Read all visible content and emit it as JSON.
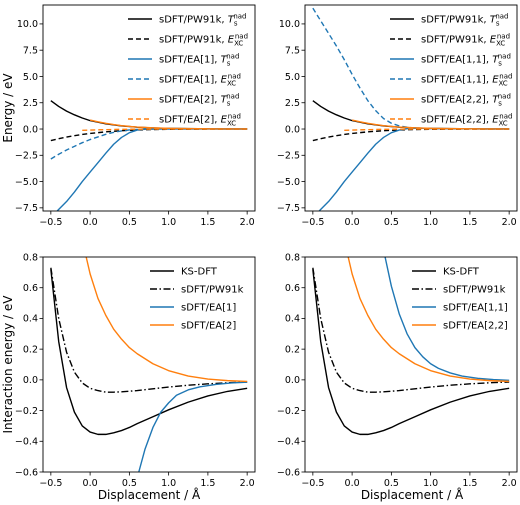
{
  "figure": {
    "xlabel": "Displacement / Å",
    "colors": {
      "black": "#000000",
      "blue": "#1f77b4",
      "orange": "#ff7f0e"
    }
  },
  "chart_data": [
    {
      "type": "line",
      "ylabel": "Energy / eV",
      "xlim": [
        -0.6,
        2.1
      ],
      "ylim": [
        -7.8,
        11.8
      ],
      "xticks": [
        "-0.5",
        "0.0",
        "0.5",
        "1.0",
        "1.5",
        "2.0"
      ],
      "yticks": [
        "-7.5",
        "-5.0",
        "-2.5",
        "0.0",
        "2.5",
        "5.0",
        "7.5",
        "10.0"
      ],
      "legend_position": "top-right",
      "series": [
        {
          "name": "sDFT/PW91k, T_s^nad",
          "label_main": "sDFT/PW91k, ",
          "label_sym": "T",
          "label_sub": "s",
          "label_sup": "nad",
          "color": "#000000",
          "dash": "solid",
          "x": [
            -0.5,
            -0.4,
            -0.3,
            -0.2,
            -0.1,
            0.0,
            0.2,
            0.4,
            0.6,
            0.8,
            1.0,
            1.25,
            1.5,
            1.75,
            2.0
          ],
          "y": [
            2.7,
            2.15,
            1.7,
            1.35,
            1.05,
            0.8,
            0.5,
            0.3,
            0.17,
            0.1,
            0.06,
            0.03,
            0.015,
            0.008,
            0.004
          ]
        },
        {
          "name": "sDFT/PW91k, E_XC^nad",
          "label_main": "sDFT/PW91k, ",
          "label_sym": "E",
          "label_sub": "XC",
          "label_sup": "nad",
          "color": "#000000",
          "dash": "dashed",
          "x": [
            -0.5,
            -0.4,
            -0.3,
            -0.2,
            -0.1,
            0.0,
            0.2,
            0.4,
            0.6,
            0.8,
            1.0,
            1.25,
            1.5,
            1.75,
            2.0
          ],
          "y": [
            -1.1,
            -0.92,
            -0.77,
            -0.63,
            -0.52,
            -0.42,
            -0.27,
            -0.16,
            -0.09,
            -0.05,
            -0.03,
            -0.015,
            -0.008,
            -0.004,
            -0.002
          ]
        },
        {
          "name": "sDFT/EA[1], T_s^nad",
          "label_main": "sDFT/EA[1], ",
          "label_sym": "T",
          "label_sub": "s",
          "label_sup": "nad",
          "color": "#1f77b4",
          "dash": "solid",
          "x": [
            -0.42,
            -0.3,
            -0.2,
            -0.1,
            0.0,
            0.1,
            0.2,
            0.3,
            0.4,
            0.5,
            0.6,
            0.7,
            0.8,
            1.0,
            1.25,
            1.5,
            1.75,
            2.0
          ],
          "y": [
            -7.8,
            -6.9,
            -6.0,
            -5.0,
            -4.1,
            -3.2,
            -2.3,
            -1.45,
            -0.8,
            -0.35,
            -0.1,
            0.03,
            0.08,
            0.07,
            0.04,
            0.02,
            0.01,
            0.005
          ]
        },
        {
          "name": "sDFT/EA[1], E_XC^nad",
          "label_main": "sDFT/EA[1], ",
          "label_sym": "E",
          "label_sub": "XC",
          "label_sup": "nad",
          "color": "#1f77b4",
          "dash": "dashed",
          "x": [
            -0.5,
            -0.4,
            -0.3,
            -0.2,
            -0.1,
            0.0,
            0.1,
            0.2,
            0.3,
            0.4,
            0.5,
            0.6,
            0.8,
            1.0,
            1.25,
            1.5,
            1.75,
            2.0
          ],
          "y": [
            -2.85,
            -2.4,
            -2.0,
            -1.65,
            -1.3,
            -1.0,
            -0.75,
            -0.5,
            -0.32,
            -0.18,
            -0.09,
            -0.04,
            -0.01,
            0.0,
            0.0,
            0.0,
            0.0,
            0.0
          ]
        },
        {
          "name": "sDFT/EA[2], T_s^nad",
          "label_main": "sDFT/EA[2], ",
          "label_sym": "T",
          "label_sub": "s",
          "label_sup": "nad",
          "color": "#ff7f0e",
          "dash": "solid",
          "x": [
            0.0,
            0.1,
            0.2,
            0.3,
            0.4,
            0.5,
            0.6,
            0.8,
            1.0,
            1.25,
            1.5,
            1.75,
            2.0
          ],
          "y": [
            0.85,
            0.68,
            0.54,
            0.42,
            0.32,
            0.25,
            0.19,
            0.11,
            0.07,
            0.04,
            0.02,
            0.01,
            0.005
          ]
        },
        {
          "name": "sDFT/EA[2], E_XC^nad",
          "label_main": "sDFT/EA[2], ",
          "label_sym": "E",
          "label_sub": "XC",
          "label_sup": "nad",
          "color": "#ff7f0e",
          "dash": "dashed",
          "x": [
            -0.1,
            0.0,
            0.2,
            0.4,
            0.6,
            0.8,
            1.0,
            1.25,
            1.5,
            1.75,
            2.0
          ],
          "y": [
            -0.12,
            -0.1,
            -0.06,
            -0.03,
            -0.015,
            -0.008,
            -0.004,
            -0.002,
            -0.001,
            0.0,
            0.0
          ]
        }
      ]
    },
    {
      "type": "line",
      "ylabel": "",
      "xlim": [
        -0.6,
        2.1
      ],
      "ylim": [
        -7.8,
        11.8
      ],
      "xticks": [
        "-0.5",
        "0.0",
        "0.5",
        "1.0",
        "1.5",
        "2.0"
      ],
      "yticks": [
        "-7.5",
        "-5.0",
        "-2.5",
        "0.0",
        "2.5",
        "5.0",
        "7.5",
        "10.0"
      ],
      "legend_position": "top-right",
      "series": [
        {
          "name": "sDFT/PW91k, T_s^nad",
          "label_main": "sDFT/PW91k, ",
          "label_sym": "T",
          "label_sub": "s",
          "label_sup": "nad",
          "color": "#000000",
          "dash": "solid",
          "x": [
            -0.5,
            -0.4,
            -0.3,
            -0.2,
            -0.1,
            0.0,
            0.2,
            0.4,
            0.6,
            0.8,
            1.0,
            1.25,
            1.5,
            1.75,
            2.0
          ],
          "y": [
            2.7,
            2.15,
            1.7,
            1.35,
            1.05,
            0.8,
            0.5,
            0.3,
            0.17,
            0.1,
            0.06,
            0.03,
            0.015,
            0.008,
            0.004
          ]
        },
        {
          "name": "sDFT/PW91k, E_XC^nad",
          "label_main": "sDFT/PW91k, ",
          "label_sym": "E",
          "label_sub": "XC",
          "label_sup": "nad",
          "color": "#000000",
          "dash": "dashed",
          "x": [
            -0.5,
            -0.4,
            -0.3,
            -0.2,
            -0.1,
            0.0,
            0.2,
            0.4,
            0.6,
            0.8,
            1.0,
            1.25,
            1.5,
            1.75,
            2.0
          ],
          "y": [
            -1.1,
            -0.92,
            -0.77,
            -0.63,
            -0.52,
            -0.42,
            -0.27,
            -0.16,
            -0.09,
            -0.05,
            -0.03,
            -0.015,
            -0.008,
            -0.004,
            -0.002
          ]
        },
        {
          "name": "sDFT/EA[1,1], T_s^nad",
          "label_main": "sDFT/EA[1,1], ",
          "label_sym": "T",
          "label_sub": "s",
          "label_sup": "nad",
          "color": "#1f77b4",
          "dash": "solid",
          "x": [
            -0.42,
            -0.3,
            -0.2,
            -0.1,
            0.0,
            0.1,
            0.2,
            0.3,
            0.4,
            0.5,
            0.6,
            0.7,
            0.8,
            1.0,
            1.25,
            1.5,
            1.75,
            2.0
          ],
          "y": [
            -7.8,
            -6.9,
            -6.0,
            -5.0,
            -4.1,
            -3.2,
            -2.3,
            -1.45,
            -0.8,
            -0.35,
            -0.1,
            0.03,
            0.08,
            0.07,
            0.04,
            0.02,
            0.01,
            0.005
          ]
        },
        {
          "name": "sDFT/EA[1,1], E_XC^nad",
          "label_main": "sDFT/EA[1,1], ",
          "label_sym": "E",
          "label_sub": "XC",
          "label_sup": "nad",
          "color": "#1f77b4",
          "dash": "dashed",
          "x": [
            -0.5,
            -0.4,
            -0.3,
            -0.2,
            -0.1,
            0.0,
            0.1,
            0.2,
            0.3,
            0.4,
            0.5,
            0.6,
            0.7,
            0.8,
            1.0,
            1.25,
            1.5,
            1.75,
            2.0
          ],
          "y": [
            11.5,
            10.3,
            9.1,
            7.9,
            6.6,
            5.2,
            3.9,
            2.7,
            1.75,
            1.0,
            0.55,
            0.3,
            0.17,
            0.1,
            0.04,
            0.015,
            0.006,
            0.002,
            0.001
          ]
        },
        {
          "name": "sDFT/EA[2,2], T_s^nad",
          "label_main": "sDFT/EA[2,2], ",
          "label_sym": "T",
          "label_sub": "s",
          "label_sup": "nad",
          "color": "#ff7f0e",
          "dash": "solid",
          "x": [
            0.0,
            0.1,
            0.2,
            0.3,
            0.4,
            0.5,
            0.6,
            0.8,
            1.0,
            1.25,
            1.5,
            1.75,
            2.0
          ],
          "y": [
            0.85,
            0.68,
            0.54,
            0.42,
            0.32,
            0.25,
            0.19,
            0.11,
            0.07,
            0.04,
            0.02,
            0.01,
            0.005
          ]
        },
        {
          "name": "sDFT/EA[2,2], E_XC^nad",
          "label_main": "sDFT/EA[2,2], ",
          "label_sym": "E",
          "label_sub": "XC",
          "label_sup": "nad",
          "color": "#ff7f0e",
          "dash": "dashed",
          "x": [
            -0.1,
            0.0,
            0.2,
            0.4,
            0.6,
            0.8,
            1.0,
            1.25,
            1.5,
            1.75,
            2.0
          ],
          "y": [
            -0.12,
            -0.1,
            -0.06,
            -0.03,
            -0.015,
            -0.008,
            -0.004,
            -0.002,
            -0.001,
            0.0,
            0.0
          ]
        }
      ]
    },
    {
      "type": "line",
      "ylabel": "Interaction energy / eV",
      "xlim": [
        -0.6,
        2.1
      ],
      "ylim": [
        -0.6,
        0.8
      ],
      "xticks": [
        "-0.5",
        "0.0",
        "0.5",
        "1.0",
        "1.5",
        "2.0"
      ],
      "yticks": [
        "-0.6",
        "-0.4",
        "-0.2",
        "0.0",
        "0.2",
        "0.4",
        "0.6",
        "0.8"
      ],
      "legend_position": "top-right",
      "series": [
        {
          "name": "KS-DFT",
          "label_main": "KS-DFT",
          "color": "#000000",
          "dash": "solid",
          "x": [
            -0.5,
            -0.4,
            -0.3,
            -0.2,
            -0.1,
            0.0,
            0.1,
            0.2,
            0.3,
            0.4,
            0.5,
            0.6,
            0.8,
            1.0,
            1.25,
            1.5,
            1.75,
            2.0
          ],
          "y": [
            0.72,
            0.25,
            -0.05,
            -0.21,
            -0.3,
            -0.34,
            -0.355,
            -0.355,
            -0.345,
            -0.33,
            -0.31,
            -0.285,
            -0.24,
            -0.195,
            -0.145,
            -0.105,
            -0.075,
            -0.055
          ]
        },
        {
          "name": "sDFT/PW91k",
          "label_main": "sDFT/PW91k",
          "color": "#000000",
          "dash": "dashdot",
          "x": [
            -0.5,
            -0.4,
            -0.3,
            -0.2,
            -0.1,
            0.0,
            0.1,
            0.2,
            0.3,
            0.4,
            0.6,
            0.8,
            1.0,
            1.25,
            1.5,
            1.75,
            2.0
          ],
          "y": [
            0.73,
            0.4,
            0.18,
            0.05,
            -0.02,
            -0.055,
            -0.07,
            -0.08,
            -0.08,
            -0.078,
            -0.07,
            -0.058,
            -0.047,
            -0.035,
            -0.026,
            -0.019,
            -0.014
          ]
        },
        {
          "name": "sDFT/EA[1]",
          "label_main": "sDFT/EA[1]",
          "color": "#1f77b4",
          "dash": "solid",
          "x": [
            0.62,
            0.7,
            0.8,
            0.9,
            1.0,
            1.1,
            1.25,
            1.4,
            1.6,
            1.8,
            2.0
          ],
          "y": [
            -0.6,
            -0.45,
            -0.31,
            -0.21,
            -0.15,
            -0.1,
            -0.065,
            -0.045,
            -0.03,
            -0.02,
            -0.015
          ]
        },
        {
          "name": "sDFT/EA[2]",
          "label_main": "sDFT/EA[2]",
          "color": "#ff7f0e",
          "dash": "solid",
          "x": [
            -0.05,
            0.0,
            0.1,
            0.2,
            0.3,
            0.4,
            0.5,
            0.6,
            0.8,
            1.0,
            1.25,
            1.5,
            1.75,
            2.0
          ],
          "y": [
            0.8,
            0.69,
            0.53,
            0.42,
            0.33,
            0.265,
            0.21,
            0.17,
            0.105,
            0.06,
            0.025,
            0.005,
            -0.005,
            -0.01
          ]
        }
      ]
    },
    {
      "type": "line",
      "ylabel": "",
      "xlim": [
        -0.6,
        2.1
      ],
      "ylim": [
        -0.6,
        0.8
      ],
      "xticks": [
        "-0.5",
        "0.0",
        "0.5",
        "1.0",
        "1.5",
        "2.0"
      ],
      "yticks": [
        "-0.6",
        "-0.4",
        "-0.2",
        "0.0",
        "0.2",
        "0.4",
        "0.6",
        "0.8"
      ],
      "legend_position": "top-right",
      "series": [
        {
          "name": "KS-DFT",
          "label_main": "KS-DFT",
          "color": "#000000",
          "dash": "solid",
          "x": [
            -0.5,
            -0.4,
            -0.3,
            -0.2,
            -0.1,
            0.0,
            0.1,
            0.2,
            0.3,
            0.4,
            0.5,
            0.6,
            0.8,
            1.0,
            1.25,
            1.5,
            1.75,
            2.0
          ],
          "y": [
            0.72,
            0.25,
            -0.05,
            -0.21,
            -0.3,
            -0.34,
            -0.355,
            -0.355,
            -0.345,
            -0.33,
            -0.31,
            -0.285,
            -0.24,
            -0.195,
            -0.145,
            -0.105,
            -0.075,
            -0.055
          ]
        },
        {
          "name": "sDFT/PW91k",
          "label_main": "sDFT/PW91k",
          "color": "#000000",
          "dash": "dashdot",
          "x": [
            -0.5,
            -0.4,
            -0.3,
            -0.2,
            -0.1,
            0.0,
            0.1,
            0.2,
            0.3,
            0.4,
            0.6,
            0.8,
            1.0,
            1.25,
            1.5,
            1.75,
            2.0
          ],
          "y": [
            0.73,
            0.4,
            0.18,
            0.05,
            -0.02,
            -0.055,
            -0.07,
            -0.08,
            -0.08,
            -0.078,
            -0.07,
            -0.058,
            -0.047,
            -0.035,
            -0.026,
            -0.019,
            -0.014
          ]
        },
        {
          "name": "sDFT/EA[1,1]",
          "label_main": "sDFT/EA[1,1]",
          "color": "#1f77b4",
          "dash": "solid",
          "x": [
            0.42,
            0.5,
            0.6,
            0.7,
            0.8,
            0.9,
            1.0,
            1.1,
            1.25,
            1.4,
            1.6,
            1.8,
            2.0
          ],
          "y": [
            0.8,
            0.61,
            0.43,
            0.3,
            0.21,
            0.15,
            0.105,
            0.075,
            0.045,
            0.025,
            0.01,
            0.002,
            -0.003
          ]
        },
        {
          "name": "sDFT/EA[2,2]",
          "label_main": "sDFT/EA[2,2]",
          "color": "#ff7f0e",
          "dash": "solid",
          "x": [
            -0.05,
            0.0,
            0.1,
            0.2,
            0.3,
            0.4,
            0.5,
            0.6,
            0.8,
            1.0,
            1.25,
            1.5,
            1.75,
            2.0
          ],
          "y": [
            0.8,
            0.69,
            0.53,
            0.42,
            0.33,
            0.265,
            0.21,
            0.17,
            0.105,
            0.06,
            0.025,
            0.005,
            -0.005,
            -0.01
          ]
        }
      ]
    }
  ]
}
